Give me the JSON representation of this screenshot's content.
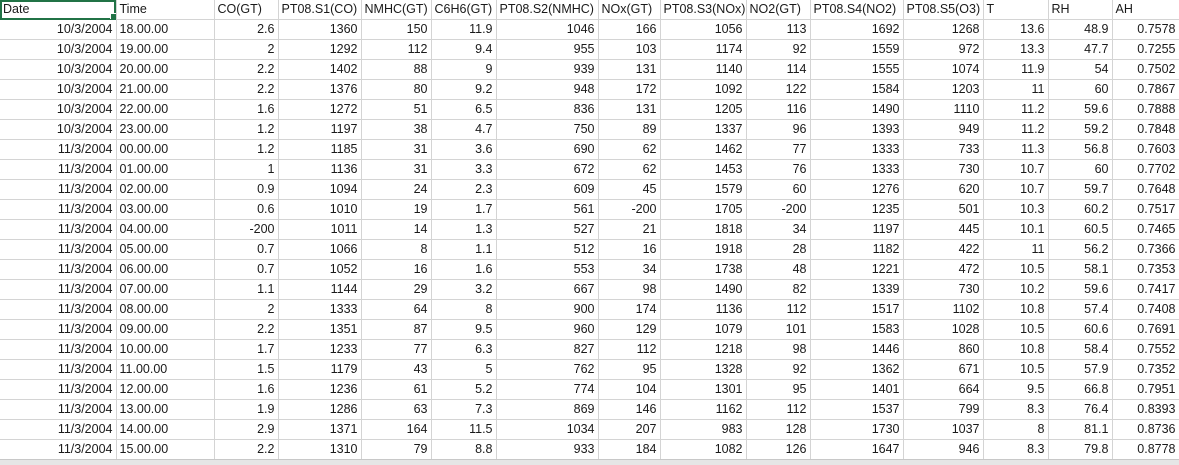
{
  "headers": [
    "Date",
    "Time",
    "CO(GT)",
    "PT08.S1(CO)",
    "NMHC(GT)",
    "C6H6(GT)",
    "PT08.S2(NMHC)",
    "NOx(GT)",
    "PT08.S3(NOx)",
    "NO2(GT)",
    "PT08.S4(NO2)",
    "PT08.S5(O3)",
    "T",
    "RH",
    "AH"
  ],
  "rows": [
    [
      "10/3/2004",
      "18.00.00",
      "2.6",
      "1360",
      "150",
      "11.9",
      "1046",
      "166",
      "1056",
      "113",
      "1692",
      "1268",
      "13.6",
      "48.9",
      "0.7578"
    ],
    [
      "10/3/2004",
      "19.00.00",
      "2",
      "1292",
      "112",
      "9.4",
      "955",
      "103",
      "1174",
      "92",
      "1559",
      "972",
      "13.3",
      "47.7",
      "0.7255"
    ],
    [
      "10/3/2004",
      "20.00.00",
      "2.2",
      "1402",
      "88",
      "9",
      "939",
      "131",
      "1140",
      "114",
      "1555",
      "1074",
      "11.9",
      "54",
      "0.7502"
    ],
    [
      "10/3/2004",
      "21.00.00",
      "2.2",
      "1376",
      "80",
      "9.2",
      "948",
      "172",
      "1092",
      "122",
      "1584",
      "1203",
      "11",
      "60",
      "0.7867"
    ],
    [
      "10/3/2004",
      "22.00.00",
      "1.6",
      "1272",
      "51",
      "6.5",
      "836",
      "131",
      "1205",
      "116",
      "1490",
      "1110",
      "11.2",
      "59.6",
      "0.7888"
    ],
    [
      "10/3/2004",
      "23.00.00",
      "1.2",
      "1197",
      "38",
      "4.7",
      "750",
      "89",
      "1337",
      "96",
      "1393",
      "949",
      "11.2",
      "59.2",
      "0.7848"
    ],
    [
      "11/3/2004",
      "00.00.00",
      "1.2",
      "1185",
      "31",
      "3.6",
      "690",
      "62",
      "1462",
      "77",
      "1333",
      "733",
      "11.3",
      "56.8",
      "0.7603"
    ],
    [
      "11/3/2004",
      "01.00.00",
      "1",
      "1136",
      "31",
      "3.3",
      "672",
      "62",
      "1453",
      "76",
      "1333",
      "730",
      "10.7",
      "60",
      "0.7702"
    ],
    [
      "11/3/2004",
      "02.00.00",
      "0.9",
      "1094",
      "24",
      "2.3",
      "609",
      "45",
      "1579",
      "60",
      "1276",
      "620",
      "10.7",
      "59.7",
      "0.7648"
    ],
    [
      "11/3/2004",
      "03.00.00",
      "0.6",
      "1010",
      "19",
      "1.7",
      "561",
      "-200",
      "1705",
      "-200",
      "1235",
      "501",
      "10.3",
      "60.2",
      "0.7517"
    ],
    [
      "11/3/2004",
      "04.00.00",
      "-200",
      "1011",
      "14",
      "1.3",
      "527",
      "21",
      "1818",
      "34",
      "1197",
      "445",
      "10.1",
      "60.5",
      "0.7465"
    ],
    [
      "11/3/2004",
      "05.00.00",
      "0.7",
      "1066",
      "8",
      "1.1",
      "512",
      "16",
      "1918",
      "28",
      "1182",
      "422",
      "11",
      "56.2",
      "0.7366"
    ],
    [
      "11/3/2004",
      "06.00.00",
      "0.7",
      "1052",
      "16",
      "1.6",
      "553",
      "34",
      "1738",
      "48",
      "1221",
      "472",
      "10.5",
      "58.1",
      "0.7353"
    ],
    [
      "11/3/2004",
      "07.00.00",
      "1.1",
      "1144",
      "29",
      "3.2",
      "667",
      "98",
      "1490",
      "82",
      "1339",
      "730",
      "10.2",
      "59.6",
      "0.7417"
    ],
    [
      "11/3/2004",
      "08.00.00",
      "2",
      "1333",
      "64",
      "8",
      "900",
      "174",
      "1136",
      "112",
      "1517",
      "1102",
      "10.8",
      "57.4",
      "0.7408"
    ],
    [
      "11/3/2004",
      "09.00.00",
      "2.2",
      "1351",
      "87",
      "9.5",
      "960",
      "129",
      "1079",
      "101",
      "1583",
      "1028",
      "10.5",
      "60.6",
      "0.7691"
    ],
    [
      "11/3/2004",
      "10.00.00",
      "1.7",
      "1233",
      "77",
      "6.3",
      "827",
      "112",
      "1218",
      "98",
      "1446",
      "860",
      "10.8",
      "58.4",
      "0.7552"
    ],
    [
      "11/3/2004",
      "11.00.00",
      "1.5",
      "1179",
      "43",
      "5",
      "762",
      "95",
      "1328",
      "92",
      "1362",
      "671",
      "10.5",
      "57.9",
      "0.7352"
    ],
    [
      "11/3/2004",
      "12.00.00",
      "1.6",
      "1236",
      "61",
      "5.2",
      "774",
      "104",
      "1301",
      "95",
      "1401",
      "664",
      "9.5",
      "66.8",
      "0.7951"
    ],
    [
      "11/3/2004",
      "13.00.00",
      "1.9",
      "1286",
      "63",
      "7.3",
      "869",
      "146",
      "1162",
      "112",
      "1537",
      "799",
      "8.3",
      "76.4",
      "0.8393"
    ],
    [
      "11/3/2004",
      "14.00.00",
      "2.9",
      "1371",
      "164",
      "11.5",
      "1034",
      "207",
      "983",
      "128",
      "1730",
      "1037",
      "8",
      "81.1",
      "0.8736"
    ],
    [
      "11/3/2004",
      "15.00.00",
      "2.2",
      "1310",
      "79",
      "8.8",
      "933",
      "184",
      "1082",
      "126",
      "1647",
      "946",
      "8.3",
      "79.8",
      "0.8778"
    ]
  ],
  "colors": {
    "selection": "#217346",
    "gridline": "#d4d4d4"
  }
}
